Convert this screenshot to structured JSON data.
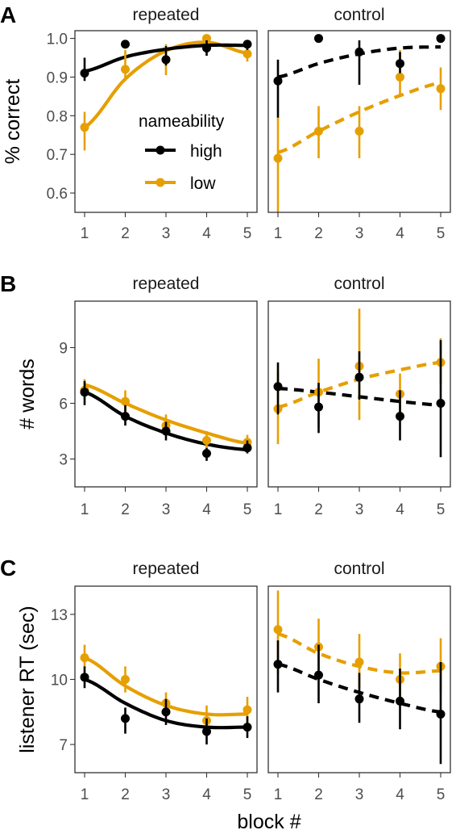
{
  "figure": {
    "xlabel": "block #",
    "colors": {
      "high": "#000000",
      "low": "#E69F00"
    },
    "legend": {
      "title": "nameability",
      "entries": [
        {
          "key": "high",
          "label": "high"
        },
        {
          "key": "low",
          "label": "low"
        }
      ],
      "placement": "inside row A, repeated panel, lower-middle"
    }
  },
  "chart_data": [
    {
      "type": "line",
      "row_label": "A",
      "ylabel": "% correct",
      "ylim": [
        0.55,
        1.02
      ],
      "yticks": [
        0.6,
        0.7,
        0.8,
        0.9,
        1.0
      ],
      "ytick_labels": [
        "0.6",
        "0.7",
        "0.8",
        "0.9",
        "1.0"
      ],
      "x": [
        1,
        2,
        3,
        4,
        5
      ],
      "xtick_labels": [
        "1",
        "2",
        "3",
        "4",
        "5"
      ],
      "grid": false,
      "panels": [
        {
          "facet": "repeated",
          "fit_linetype": "solid",
          "series": [
            {
              "name": "high",
              "values": [
                0.91,
                0.985,
                0.945,
                0.975,
                0.985
              ],
              "error": [
                [
                  0.89,
                  0.95
                ],
                [
                  0.985,
                  0.985
                ],
                [
                  0.93,
                  0.98
                ],
                [
                  0.955,
                  0.995
                ],
                [
                  0.97,
                  0.995
                ]
              ],
              "fit": [
                0.915,
                0.952,
                0.972,
                0.982,
                0.982
              ]
            },
            {
              "name": "low",
              "values": [
                0.77,
                0.92,
                0.945,
                1.0,
                0.96
              ],
              "error": [
                [
                  0.71,
                  0.81
                ],
                [
                  0.89,
                  0.97
                ],
                [
                  0.905,
                  0.985
                ],
                [
                  1.0,
                  1.0
                ],
                [
                  0.94,
                  0.97
                ]
              ],
              "fit": [
                0.77,
                0.895,
                0.968,
                0.99,
                0.962
              ]
            }
          ]
        },
        {
          "facet": "control",
          "fit_linetype": "dashed",
          "series": [
            {
              "name": "high",
              "values": [
                0.89,
                1.0,
                0.965,
                0.935,
                1.0
              ],
              "error": [
                [
                  0.795,
                  0.945
                ],
                [
                  1.0,
                  1.0
                ],
                [
                  0.88,
                  0.995
                ],
                [
                  0.91,
                  0.965
                ],
                [
                  1.0,
                  1.0
                ]
              ],
              "fit": [
                0.9,
                0.935,
                0.96,
                0.975,
                0.978
              ]
            },
            {
              "name": "low",
              "values": [
                0.69,
                0.76,
                0.76,
                0.9,
                0.87
              ],
              "error": [
                [
                  0.55,
                  0.795
                ],
                [
                  0.69,
                  0.825
                ],
                [
                  0.69,
                  0.825
                ],
                [
                  0.85,
                  0.97
                ],
                [
                  0.815,
                  0.925
                ]
              ],
              "fit": [
                0.705,
                0.76,
                0.81,
                0.852,
                0.885
              ]
            }
          ]
        }
      ]
    },
    {
      "type": "line",
      "row_label": "B",
      "ylabel": "# words",
      "ylim": [
        1.5,
        11.5
      ],
      "yticks": [
        3,
        6,
        9
      ],
      "ytick_labels": [
        "3",
        "6",
        "9"
      ],
      "x": [
        1,
        2,
        3,
        4,
        5
      ],
      "xtick_labels": [
        "1",
        "2",
        "3",
        "4",
        "5"
      ],
      "grid": false,
      "panels": [
        {
          "facet": "repeated",
          "fit_linetype": "solid",
          "series": [
            {
              "name": "high",
              "values": [
                6.6,
                5.3,
                4.5,
                3.3,
                3.6
              ],
              "error": [
                [
                  5.9,
                  7.2
                ],
                [
                  4.8,
                  5.9
                ],
                [
                  4.0,
                  5.0
                ],
                [
                  2.9,
                  3.6
                ],
                [
                  3.3,
                  4.0
                ]
              ],
              "fit": [
                6.6,
                5.3,
                4.4,
                3.8,
                3.5
              ]
            },
            {
              "name": "low",
              "values": [
                6.7,
                6.1,
                4.8,
                4.0,
                3.9
              ],
              "error": [
                [
                  6.2,
                  7.3
                ],
                [
                  5.5,
                  6.7
                ],
                [
                  4.4,
                  5.4
                ],
                [
                  3.6,
                  4.5
                ],
                [
                  3.5,
                  4.3
                ]
              ],
              "fit": [
                7.0,
                6.0,
                5.1,
                4.4,
                3.85
              ]
            }
          ]
        },
        {
          "facet": "control",
          "fit_linetype": "dashed",
          "series": [
            {
              "name": "high",
              "values": [
                6.9,
                5.8,
                7.4,
                5.3,
                6.0
              ],
              "error": [
                [
                  5.4,
                  8.2
                ],
                [
                  4.4,
                  7.1
                ],
                [
                  6.2,
                  8.8
                ],
                [
                  4.0,
                  6.7
                ],
                [
                  3.1,
                  9.4
                ]
              ],
              "fit": [
                6.8,
                6.6,
                6.35,
                6.1,
                5.9
              ]
            },
            {
              "name": "low",
              "values": [
                5.7,
                6.6,
                8.0,
                6.5,
                8.2
              ],
              "error": [
                [
                  3.8,
                  7.7
                ],
                [
                  4.7,
                  8.4
                ],
                [
                  5.1,
                  11.1
                ],
                [
                  5.1,
                  7.6
                ],
                [
                  7.0,
                  9.5
                ]
              ],
              "fit": [
                5.8,
                6.6,
                7.3,
                7.8,
                8.2
              ]
            }
          ]
        }
      ]
    },
    {
      "type": "line",
      "row_label": "C",
      "ylabel": "listener RT (sec)",
      "ylim": [
        5.7,
        14.3
      ],
      "yticks": [
        7,
        10,
        13
      ],
      "ytick_labels": [
        "7",
        "10",
        "13"
      ],
      "x": [
        1,
        2,
        3,
        4,
        5
      ],
      "xtick_labels": [
        "1",
        "2",
        "3",
        "4",
        "5"
      ],
      "grid": false,
      "panels": [
        {
          "facet": "repeated",
          "fit_linetype": "solid",
          "series": [
            {
              "name": "high",
              "values": [
                10.1,
                8.2,
                8.5,
                7.6,
                7.8
              ],
              "error": [
                [
                  9.6,
                  10.6
                ],
                [
                  7.5,
                  8.7
                ],
                [
                  7.9,
                  9.1
                ],
                [
                  7.0,
                  8.2
                ],
                [
                  7.3,
                  8.3
                ]
              ],
              "fit": [
                10.0,
                8.9,
                8.1,
                7.8,
                7.8
              ]
            },
            {
              "name": "low",
              "values": [
                11.0,
                10.0,
                8.9,
                8.1,
                8.6
              ],
              "error": [
                [
                  10.5,
                  11.6
                ],
                [
                  9.4,
                  10.6
                ],
                [
                  8.4,
                  9.4
                ],
                [
                  7.6,
                  8.8
                ],
                [
                  8.0,
                  9.2
                ]
              ],
              "fit": [
                11.0,
                9.7,
                8.8,
                8.4,
                8.4
              ]
            }
          ]
        },
        {
          "facet": "control",
          "fit_linetype": "dashed",
          "series": [
            {
              "name": "high",
              "values": [
                10.7,
                10.2,
                9.1,
                9.0,
                8.4
              ],
              "error": [
                [
                  9.4,
                  11.8
                ],
                [
                  8.9,
                  11.6
                ],
                [
                  8.0,
                  10.3
                ],
                [
                  7.7,
                  10.5
                ],
                [
                  6.1,
                  10.8
                ]
              ],
              "fit": [
                10.7,
                10.0,
                9.4,
                8.9,
                8.5
              ]
            },
            {
              "name": "low",
              "values": [
                12.3,
                11.5,
                10.8,
                10.0,
                10.6
              ],
              "error": [
                [
                  10.3,
                  14.1
                ],
                [
                  10.2,
                  12.8
                ],
                [
                  9.6,
                  12.1
                ],
                [
                  8.8,
                  11.2
                ],
                [
                  9.4,
                  11.9
                ]
              ],
              "fit": [
                12.1,
                11.2,
                10.6,
                10.3,
                10.4
              ]
            }
          ]
        }
      ]
    }
  ]
}
